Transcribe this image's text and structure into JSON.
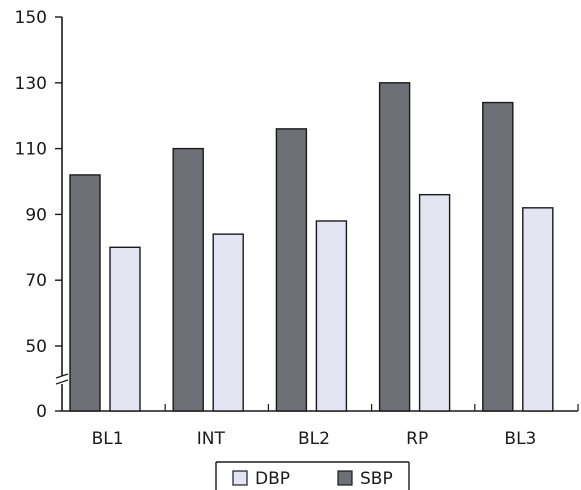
{
  "chart_data": {
    "type": "bar",
    "categories": [
      "BL1",
      "INT",
      "BL2",
      "RP",
      "BL3"
    ],
    "series": [
      {
        "name": "SBP",
        "values": [
          102,
          110,
          116,
          130,
          124
        ],
        "color": "#6f6f77",
        "stroke": "#1a1a1a"
      },
      {
        "name": "DBP",
        "values": [
          80,
          84,
          88,
          96,
          92
        ],
        "color": "#e4e4f2",
        "stroke": "#1a1a1a"
      }
    ],
    "legend_order": [
      "DBP",
      "SBP"
    ],
    "y_ticks": [
      0,
      50,
      70,
      90,
      110,
      130,
      150
    ],
    "y_tick_labels": [
      "0",
      "50",
      "70",
      "90",
      "110",
      "130",
      "150"
    ],
    "ylim": [
      0,
      150
    ],
    "y_axis_break": true,
    "grid": false,
    "legend_position": "bottom-center",
    "title": "",
    "xlabel": "",
    "ylabel": ""
  }
}
